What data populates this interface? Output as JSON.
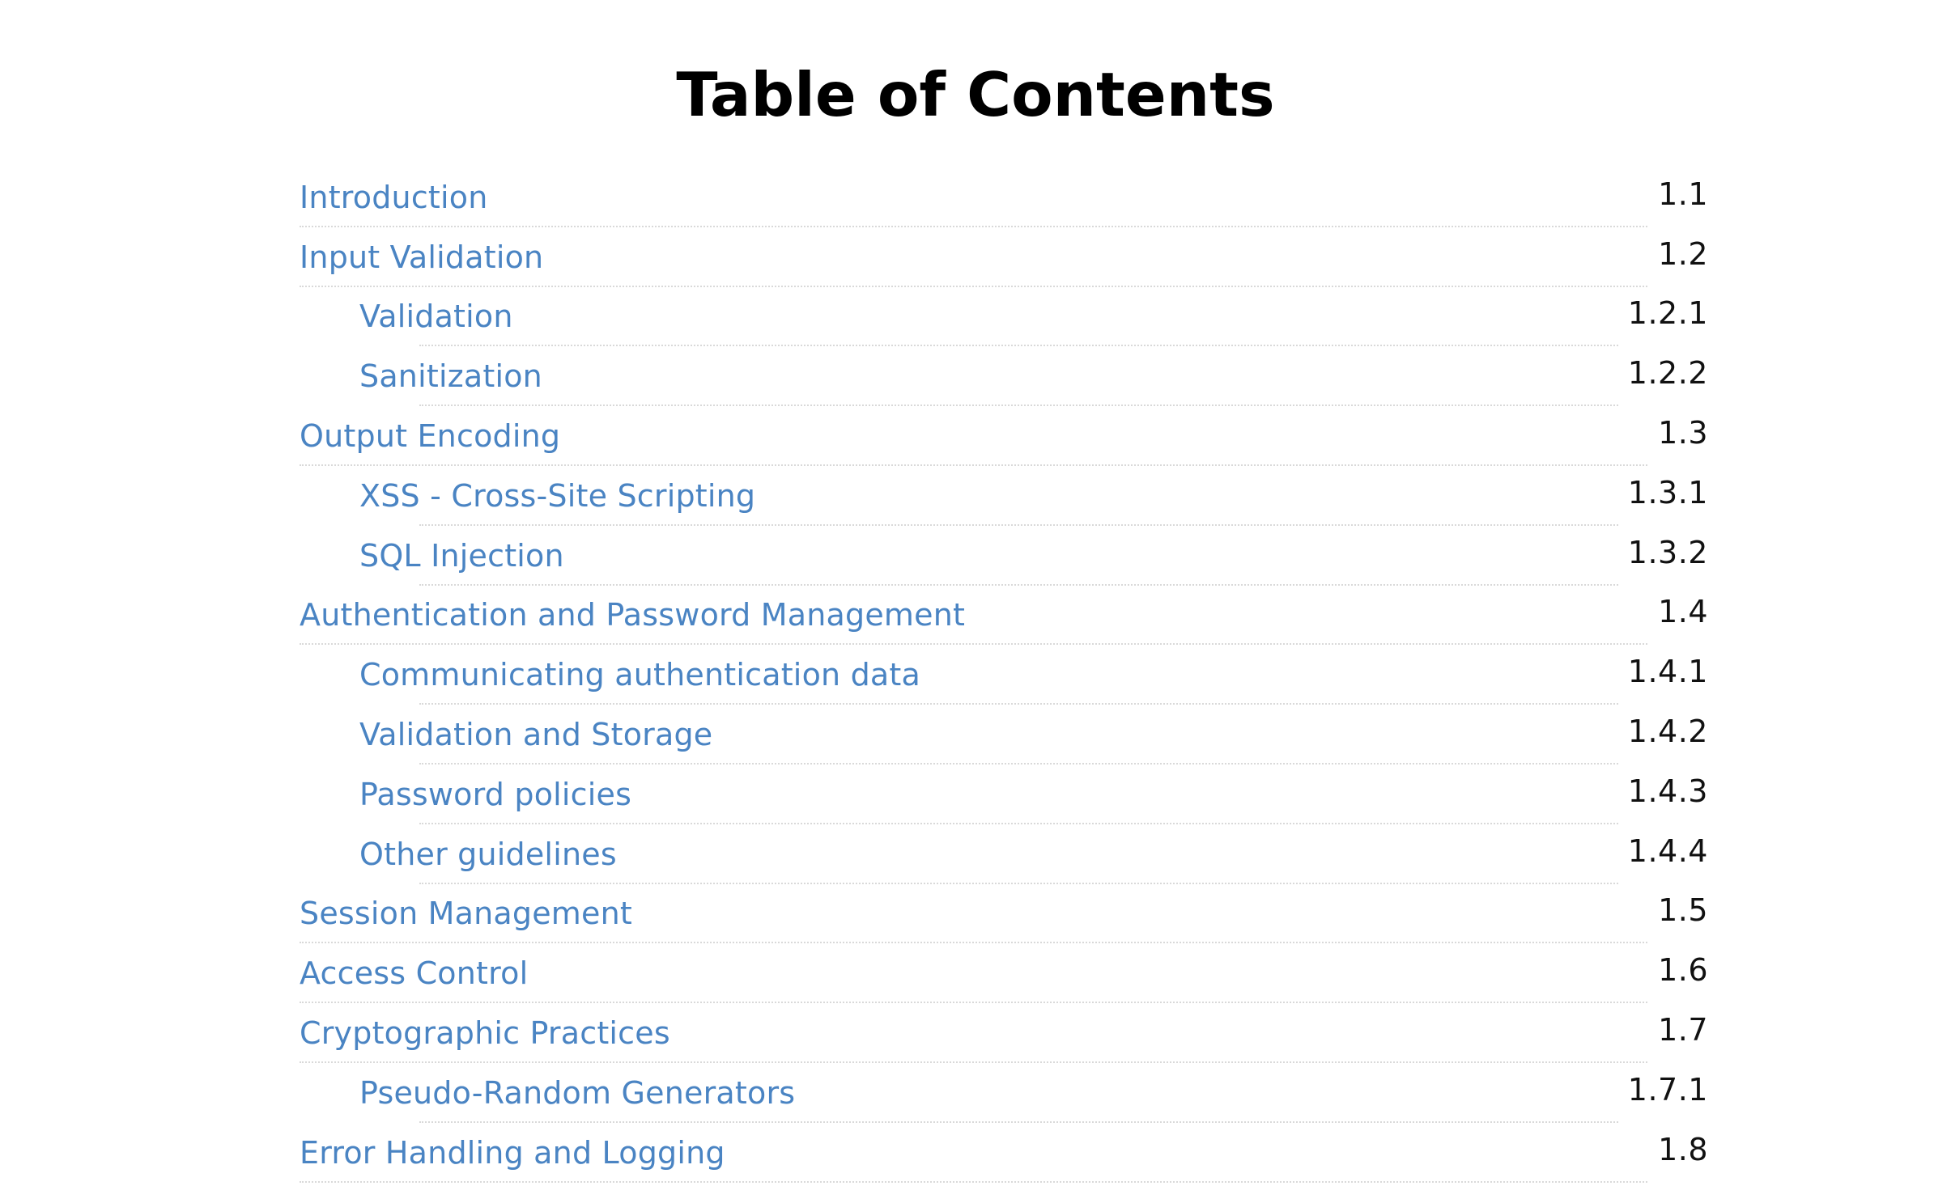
{
  "document": {
    "title": "Table of Contents",
    "entries": [
      {
        "label": "Introduction",
        "number": "1.1",
        "level": 1
      },
      {
        "label": "Input Validation",
        "number": "1.2",
        "level": 1
      },
      {
        "label": "Validation",
        "number": "1.2.1",
        "level": 2
      },
      {
        "label": "Sanitization",
        "number": "1.2.2",
        "level": 2
      },
      {
        "label": "Output Encoding",
        "number": "1.3",
        "level": 1
      },
      {
        "label": "XSS - Cross-Site Scripting",
        "number": "1.3.1",
        "level": 2
      },
      {
        "label": "SQL Injection",
        "number": "1.3.2",
        "level": 2
      },
      {
        "label": "Authentication and Password Management",
        "number": "1.4",
        "level": 1
      },
      {
        "label": "Communicating authentication data",
        "number": "1.4.1",
        "level": 2
      },
      {
        "label": "Validation and Storage",
        "number": "1.4.2",
        "level": 2
      },
      {
        "label": "Password policies",
        "number": "1.4.3",
        "level": 2
      },
      {
        "label": "Other guidelines",
        "number": "1.4.4",
        "level": 2
      },
      {
        "label": "Session Management",
        "number": "1.5",
        "level": 1
      },
      {
        "label": "Access Control",
        "number": "1.6",
        "level": 1
      },
      {
        "label": "Cryptographic Practices",
        "number": "1.7",
        "level": 1
      },
      {
        "label": "Pseudo-Random Generators",
        "number": "1.7.1",
        "level": 2
      },
      {
        "label": "Error Handling and Logging",
        "number": "1.8",
        "level": 1
      }
    ]
  },
  "colors": {
    "link": "#4a84c3",
    "number": "#111111",
    "title": "#000000",
    "rule": "#d9d9d9"
  }
}
